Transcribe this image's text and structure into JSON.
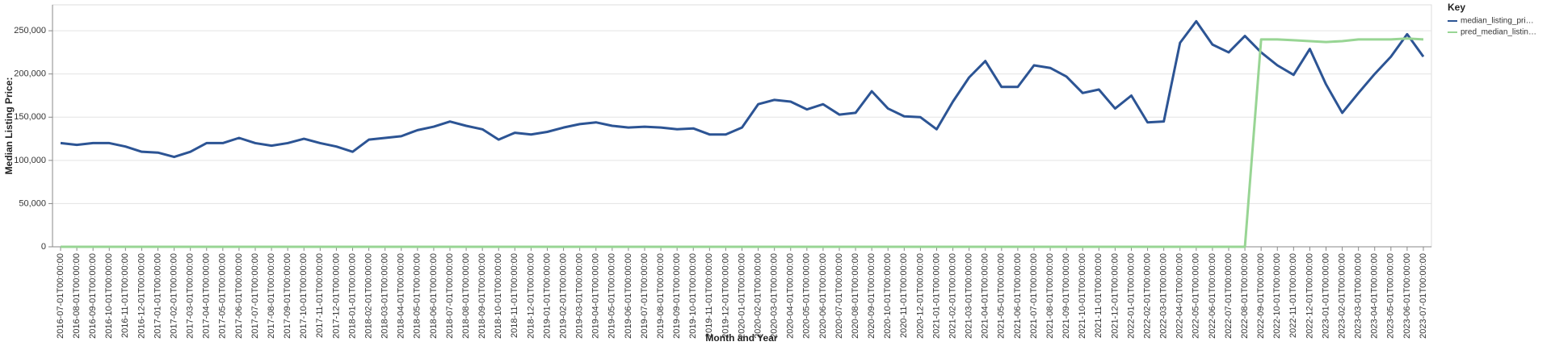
{
  "chart_data": {
    "type": "line",
    "x_label": "Month and Year",
    "y_label": "Median Listing Price:",
    "legend_title": "Key",
    "legend": "top-right-outside",
    "grid": true,
    "ylim": [
      0,
      280000
    ],
    "yticks": [
      0,
      {
        "value": 50000,
        "label": "50,000"
      },
      {
        "value": 100000,
        "label": "100,000"
      },
      {
        "value": 150000,
        "label": "150,000"
      },
      {
        "value": 200000,
        "label": "200,000"
      },
      {
        "value": 250000,
        "label": "250,000"
      }
    ],
    "categories": [
      "2016-07-01T00:00:00",
      "2016-08-01T00:00:00",
      "2016-09-01T00:00:00",
      "2016-10-01T00:00:00",
      "2016-11-01T00:00:00",
      "2016-12-01T00:00:00",
      "2017-01-01T00:00:00",
      "2017-02-01T00:00:00",
      "2017-03-01T00:00:00",
      "2017-04-01T00:00:00",
      "2017-05-01T00:00:00",
      "2017-06-01T00:00:00",
      "2017-07-01T00:00:00",
      "2017-08-01T00:00:00",
      "2017-09-01T00:00:00",
      "2017-10-01T00:00:00",
      "2017-11-01T00:00:00",
      "2017-12-01T00:00:00",
      "2018-01-01T00:00:00",
      "2018-02-01T00:00:00",
      "2018-03-01T00:00:00",
      "2018-04-01T00:00:00",
      "2018-05-01T00:00:00",
      "2018-06-01T00:00:00",
      "2018-07-01T00:00:00",
      "2018-08-01T00:00:00",
      "2018-09-01T00:00:00",
      "2018-10-01T00:00:00",
      "2018-11-01T00:00:00",
      "2018-12-01T00:00:00",
      "2019-01-01T00:00:00",
      "2019-02-01T00:00:00",
      "2019-03-01T00:00:00",
      "2019-04-01T00:00:00",
      "2019-05-01T00:00:00",
      "2019-06-01T00:00:00",
      "2019-07-01T00:00:00",
      "2019-08-01T00:00:00",
      "2019-09-01T00:00:00",
      "2019-10-01T00:00:00",
      "2019-11-01T00:00:00",
      "2019-12-01T00:00:00",
      "2020-01-01T00:00:00",
      "2020-02-01T00:00:00",
      "2020-03-01T00:00:00",
      "2020-04-01T00:00:00",
      "2020-05-01T00:00:00",
      "2020-06-01T00:00:00",
      "2020-07-01T00:00:00",
      "2020-08-01T00:00:00",
      "2020-09-01T00:00:00",
      "2020-10-01T00:00:00",
      "2020-11-01T00:00:00",
      "2020-12-01T00:00:00",
      "2021-01-01T00:00:00",
      "2021-02-01T00:00:00",
      "2021-03-01T00:00:00",
      "2021-04-01T00:00:00",
      "2021-05-01T00:00:00",
      "2021-06-01T00:00:00",
      "2021-07-01T00:00:00",
      "2021-08-01T00:00:00",
      "2021-09-01T00:00:00",
      "2021-10-01T00:00:00",
      "2021-11-01T00:00:00",
      "2021-12-01T00:00:00",
      "2022-01-01T00:00:00",
      "2022-02-01T00:00:00",
      "2022-03-01T00:00:00",
      "2022-04-01T00:00:00",
      "2022-05-01T00:00:00",
      "2022-06-01T00:00:00",
      "2022-07-01T00:00:00",
      "2022-08-01T00:00:00",
      "2022-09-01T00:00:00",
      "2022-10-01T00:00:00",
      "2022-11-01T00:00:00",
      "2022-12-01T00:00:00",
      "2023-01-01T00:00:00",
      "2023-02-01T00:00:00",
      "2023-03-01T00:00:00",
      "2023-04-01T00:00:00",
      "2023-05-01T00:00:00",
      "2023-06-01T00:00:00",
      "2023-07-01T00:00:00"
    ],
    "series": [
      {
        "name": "median_listing_pri…",
        "color": "#2c5494",
        "values": [
          120000,
          118000,
          120000,
          120000,
          116000,
          110000,
          109000,
          104000,
          110000,
          120000,
          120000,
          126000,
          120000,
          117000,
          120000,
          125000,
          120000,
          116000,
          110000,
          124000,
          126000,
          128000,
          135000,
          139000,
          145000,
          140000,
          136000,
          124000,
          132000,
          130000,
          133000,
          138000,
          142000,
          144000,
          140000,
          138000,
          139000,
          138000,
          136000,
          137000,
          130000,
          130000,
          138000,
          165000,
          170000,
          168000,
          159000,
          165000,
          153000,
          155000,
          180000,
          160000,
          151000,
          150000,
          136000,
          168000,
          196000,
          215000,
          185000,
          185000,
          210000,
          207000,
          197000,
          178000,
          182000,
          160000,
          175000,
          144000,
          145000,
          236000,
          261000,
          234000,
          225000,
          244000,
          225000,
          210000,
          199000,
          229000,
          188000,
          155000,
          178000,
          200000,
          220000,
          246000,
          220000
        ]
      },
      {
        "name": "pred_median_listin…",
        "color": "#98d594",
        "values": [
          0,
          0,
          0,
          0,
          0,
          0,
          0,
          0,
          0,
          0,
          0,
          0,
          0,
          0,
          0,
          0,
          0,
          0,
          0,
          0,
          0,
          0,
          0,
          0,
          0,
          0,
          0,
          0,
          0,
          0,
          0,
          0,
          0,
          0,
          0,
          0,
          0,
          0,
          0,
          0,
          0,
          0,
          0,
          0,
          0,
          0,
          0,
          0,
          0,
          0,
          0,
          0,
          0,
          0,
          0,
          0,
          0,
          0,
          0,
          0,
          0,
          0,
          0,
          0,
          0,
          0,
          0,
          0,
          0,
          0,
          0,
          0,
          0,
          0,
          240000,
          240000,
          239000,
          238000,
          237000,
          238000,
          240000,
          240000,
          240000,
          241000,
          240000
        ]
      }
    ]
  }
}
